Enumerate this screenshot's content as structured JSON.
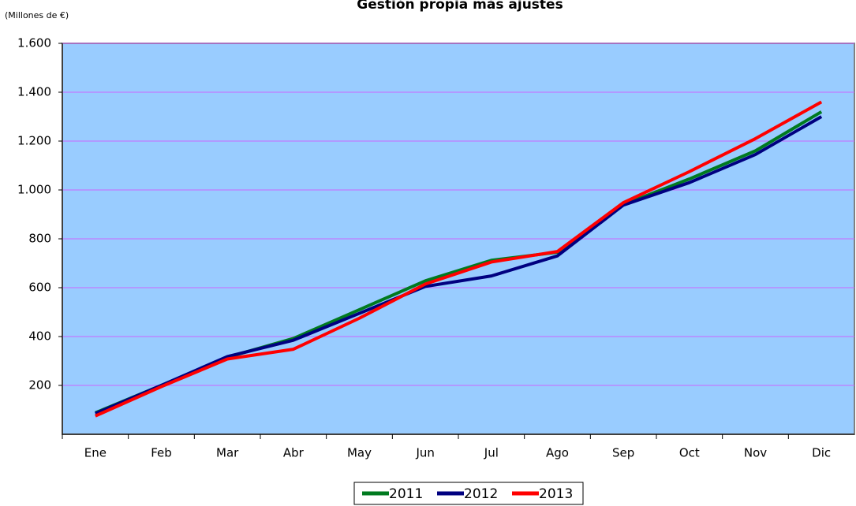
{
  "chart_data": {
    "type": "line",
    "title": "Gestión propia más ajustes",
    "subtitle": "(Millones de €)",
    "categories": [
      "Ene",
      "Feb",
      "Mar",
      "Abr",
      "May",
      "Jun",
      "Jul",
      "Ago",
      "Sep",
      "Oct",
      "Nov",
      "Dic"
    ],
    "series": [
      {
        "name": "2011",
        "color": "#007a1f",
        "values": [
          88,
          200,
          315,
          392,
          510,
          628,
          712,
          745,
          940,
          1045,
          1160,
          1320
        ]
      },
      {
        "name": "2012",
        "color": "#000080",
        "values": [
          85,
          200,
          318,
          385,
          495,
          605,
          648,
          730,
          938,
          1030,
          1145,
          1300
        ]
      },
      {
        "name": "2013",
        "color": "#ff0000",
        "values": [
          75,
          195,
          308,
          348,
          475,
          615,
          705,
          748,
          948,
          1075,
          1210,
          1360
        ]
      }
    ],
    "ylim": [
      0,
      1600
    ],
    "yticks": [
      200,
      400,
      600,
      800,
      {
        "value": 1000,
        "label": "1.000"
      },
      {
        "value": 1200,
        "label": "1.200"
      },
      {
        "value": 1400,
        "label": "1.400"
      },
      {
        "value": 1600,
        "label": "1.600"
      }
    ],
    "grid": true,
    "legend": "bottom"
  }
}
